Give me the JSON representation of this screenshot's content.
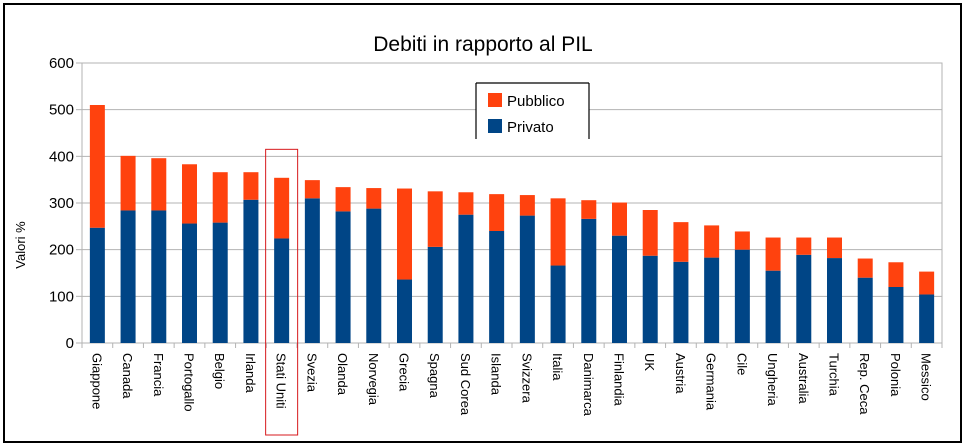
{
  "chart_data": {
    "type": "bar",
    "stacked": true,
    "title": "Debiti in rapporto al PIL",
    "xlabel": "",
    "ylabel": "Valori %",
    "ylim": [
      0,
      600
    ],
    "yticks": [
      0,
      100,
      200,
      300,
      400,
      500,
      600
    ],
    "grid": true,
    "legend_position": "top-center",
    "highlighted_category": "Stati Uniti",
    "categories": [
      "Giappone",
      "Canada",
      "Francia",
      "Portogallo",
      "Belgio",
      "Irlanda",
      "Stati Uniti",
      "Svezia",
      "Olanda",
      "Norvegia",
      "Grecia",
      "Spagna",
      "Sud Corea",
      "Islanda",
      "Svizzera",
      "Italia",
      "Danimarca",
      "Finlandia",
      "UK",
      "Austria",
      "Germania",
      "Cile",
      "Ungheria",
      "Australia",
      "Turchia",
      "Rep. Ceca",
      "Polonia",
      "Messico"
    ],
    "series": [
      {
        "name": "Privato",
        "color": "#004586",
        "values": [
          247,
          284,
          284,
          256,
          258,
          307,
          224,
          310,
          282,
          288,
          136,
          206,
          275,
          240,
          273,
          166,
          266,
          230,
          187,
          174,
          183,
          200,
          155,
          189,
          182,
          140,
          120,
          104
        ]
      },
      {
        "name": "Pubblico",
        "color": "#ff420e",
        "values": [
          263,
          117,
          112,
          127,
          108,
          59,
          130,
          39,
          52,
          44,
          195,
          119,
          48,
          79,
          44,
          144,
          40,
          71,
          98,
          85,
          69,
          39,
          71,
          37,
          44,
          41,
          53,
          49
        ]
      }
    ]
  },
  "colors": {
    "highlight_box": "#d7191c",
    "grid": "#b3b3b3"
  }
}
